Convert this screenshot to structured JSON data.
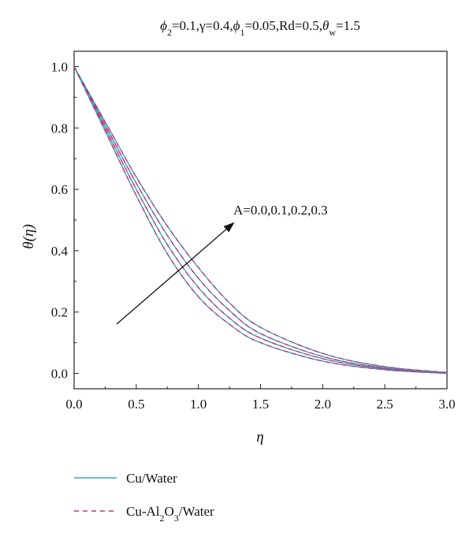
{
  "chart_data": {
    "type": "line",
    "title_parts": {
      "phi2": "=0.1,γ=0.4,",
      "phi1": "=0.05,Rd=0.5,",
      "thetaw": "=1.5"
    },
    "xlabel": "η",
    "ylabel": "θ(η)",
    "xlim": [
      0.0,
      3.0
    ],
    "ylim": [
      -0.05,
      1.05
    ],
    "xticks": [
      "0.0",
      "0.5",
      "1.0",
      "1.5",
      "2.0",
      "2.5",
      "3.0"
    ],
    "yticks": [
      "0.0",
      "0.2",
      "0.4",
      "0.6",
      "0.8",
      "1.0"
    ],
    "grid": false,
    "annotation": "A=0.0,0.1,0.2,0.3",
    "legend": {
      "position": "bottom-left",
      "entries": [
        {
          "label": "Cu/Water",
          "style": "solid",
          "color": "#3aa6b8"
        },
        {
          "label_prefix": "Cu-Al",
          "label_sub1": "2",
          "label_mid": "O",
          "label_sub2": "3",
          "label_suffix": "/Water",
          "style": "dashed",
          "color": "#c0307a"
        }
      ]
    },
    "x": [
      0.0,
      0.25,
      0.5,
      0.75,
      1.0,
      1.25,
      1.5,
      2.0,
      2.5,
      3.0
    ],
    "series": [
      {
        "A": 0.0,
        "values": [
          1.0,
          0.79,
          0.58,
          0.39,
          0.25,
          0.16,
          0.1,
          0.04,
          0.012,
          0.0
        ]
      },
      {
        "A": 0.1,
        "values": [
          1.0,
          0.8,
          0.6,
          0.42,
          0.28,
          0.18,
          0.115,
          0.048,
          0.015,
          0.001
        ]
      },
      {
        "A": 0.2,
        "values": [
          1.0,
          0.81,
          0.62,
          0.45,
          0.31,
          0.205,
          0.13,
          0.055,
          0.018,
          0.002
        ]
      },
      {
        "A": 0.3,
        "values": [
          1.0,
          0.82,
          0.64,
          0.48,
          0.345,
          0.23,
          0.15,
          0.065,
          0.022,
          0.003
        ]
      }
    ]
  }
}
